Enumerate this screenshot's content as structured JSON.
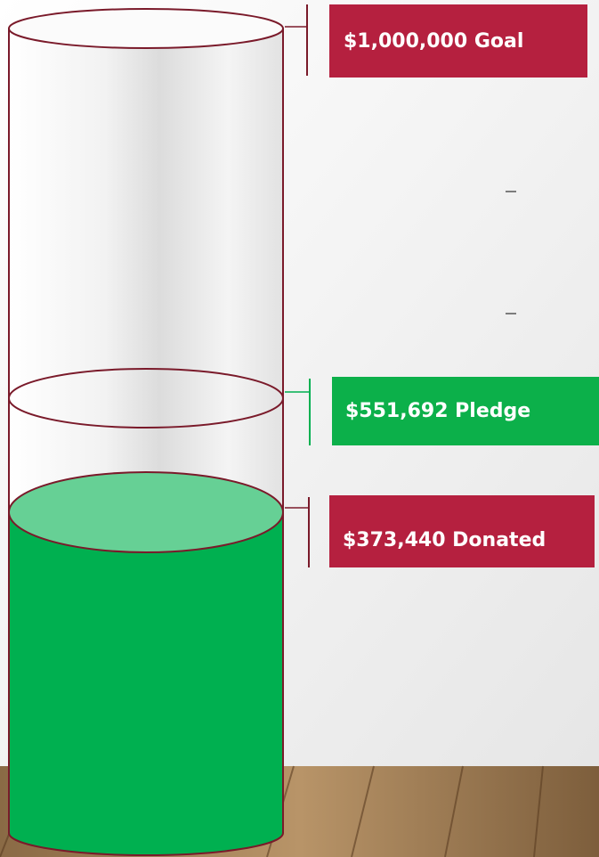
{
  "labels": {
    "goal": "$1,000,000 Goal",
    "pledge": "$551,692 Pledge",
    "donated": "$373,440 Donated"
  }
}
